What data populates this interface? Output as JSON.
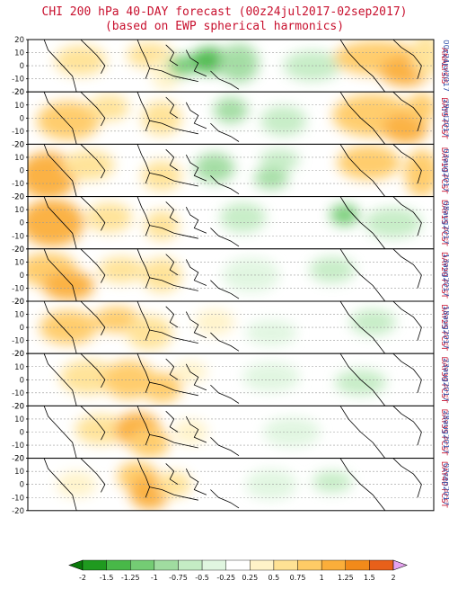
{
  "title_line1": "CHI 200 hPa 40-DAY forecast (00z24jul2017-02sep2017)",
  "title_line2": "(based on EWP spherical harmonics)",
  "y_ticks": [
    "20",
    "10",
    "0",
    "-10",
    "-20"
  ],
  "colors": {
    "title": "#c8102e",
    "label_red": "#c8102e",
    "label_blue": "#2c4ea8",
    "coast": "#000000",
    "grid": "#9a9a9a"
  },
  "panels": [
    {
      "label": "ANALYSIS",
      "date": "00z24jul2017"
    },
    {
      "label": "DAY5 FCST",
      "date": "29jul2017"
    },
    {
      "label": "DAY10 FCST",
      "date": "03aug2017"
    },
    {
      "label": "DAY15 FCST",
      "date": "08aug2017"
    },
    {
      "label": "DAY20 FCST",
      "date": "13aug2017"
    },
    {
      "label": "DAY25 FCST",
      "date": "18aug2017"
    },
    {
      "label": "DAY30 FCST",
      "date": "23aug2017"
    },
    {
      "label": "DAY35 FCST",
      "date": "28aug2017"
    },
    {
      "label": "DAY40 FCST",
      "date": "02sep2017"
    }
  ],
  "colorbar": {
    "labels": [
      "-2",
      "-1.5",
      "-1.25",
      "-1",
      "-0.75",
      "-0.5",
      "-0.25",
      "0.25",
      "0.5",
      "0.75",
      "1",
      "1.25",
      "1.5",
      "2"
    ],
    "colors": [
      "#1f9a1f",
      "#48b848",
      "#74cc74",
      "#a0dca0",
      "#c4ecc4",
      "#e0f6e0",
      "#ffffff",
      "#fff3c8",
      "#ffe294",
      "#ffcb66",
      "#fbae3a",
      "#f28a1a",
      "#e8601a"
    ],
    "left_end_color": "#0b7a0b",
    "right_end_color": "#e6a3f0"
  }
}
